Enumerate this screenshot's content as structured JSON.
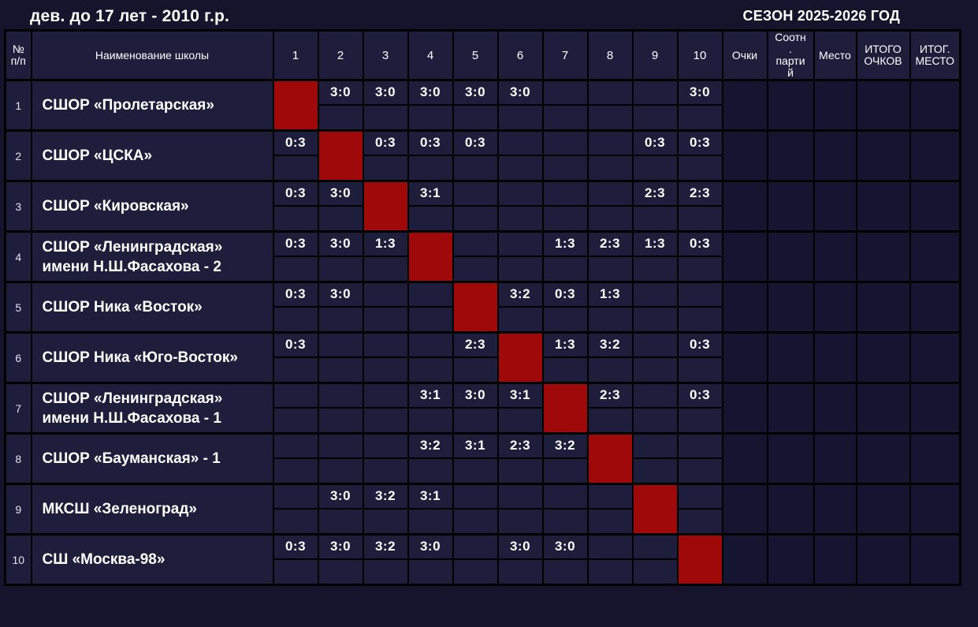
{
  "page": {
    "title": "дев. до 17 лет - 2010 г.р.",
    "season": "СЕЗОН 2025-2026 ГОД"
  },
  "colors": {
    "page_bg": "#15142c",
    "cell_bg": "#1e1d3b",
    "summary_cell_bg": "#161531",
    "diagonal_red": "#a00909",
    "border": "#000000",
    "text": "#ffffff"
  },
  "table": {
    "headers": {
      "num": "№ п/п",
      "school": "Наименование школы",
      "rounds": [
        "1",
        "2",
        "3",
        "4",
        "5",
        "6",
        "7",
        "8",
        "9",
        "10"
      ],
      "points": "Очки",
      "set_ratio": "Соотн. партий",
      "place": "Место",
      "total_points": "ИТОГО ОЧКОВ",
      "final_place": "ИТОГ. МЕСТО"
    },
    "rows": [
      {
        "num": "1",
        "school": "СШОР «Пролетарская»",
        "results": [
          "",
          "3:0",
          "3:0",
          "3:0",
          "3:0",
          "3:0",
          "",
          "",
          "",
          "3:0"
        ],
        "points": "",
        "set_ratio": "",
        "place": "",
        "total_points": "",
        "final_place": ""
      },
      {
        "num": "2",
        "school": "СШОР «ЦСКА»",
        "results": [
          "0:3",
          "",
          "0:3",
          "0:3",
          "0:3",
          "",
          "",
          "",
          "0:3",
          "0:3"
        ],
        "points": "",
        "set_ratio": "",
        "place": "",
        "total_points": "",
        "final_place": ""
      },
      {
        "num": "3",
        "school": "СШОР «Кировская»",
        "results": [
          "0:3",
          "3:0",
          "",
          "3:1",
          "",
          "",
          "",
          "",
          "2:3",
          "2:3"
        ],
        "points": "",
        "set_ratio": "",
        "place": "",
        "total_points": "",
        "final_place": ""
      },
      {
        "num": "4",
        "school": "СШОР «Ленинградская» имени Н.Ш.Фасахова - 2",
        "results": [
          "0:3",
          "3:0",
          "1:3",
          "",
          "",
          "",
          "1:3",
          "2:3",
          "1:3",
          "0:3"
        ],
        "points": "",
        "set_ratio": "",
        "place": "",
        "total_points": "",
        "final_place": ""
      },
      {
        "num": "5",
        "school": "СШОР Ника «Восток»",
        "results": [
          "0:3",
          "3:0",
          "",
          "",
          "",
          "3:2",
          "0:3",
          "1:3",
          "",
          ""
        ],
        "points": "",
        "set_ratio": "",
        "place": "",
        "total_points": "",
        "final_place": ""
      },
      {
        "num": "6",
        "school": "СШОР Ника «Юго-Восток»",
        "results": [
          "0:3",
          "",
          "",
          "",
          "2:3",
          "",
          "1:3",
          "3:2",
          "",
          "0:3"
        ],
        "points": "",
        "set_ratio": "",
        "place": "",
        "total_points": "",
        "final_place": ""
      },
      {
        "num": "7",
        "school": "СШОР «Ленинградская» имени Н.Ш.Фасахова - 1",
        "results": [
          "",
          "",
          "",
          "3:1",
          "3:0",
          "3:1",
          "",
          "2:3",
          "",
          "0:3"
        ],
        "points": "",
        "set_ratio": "",
        "place": "",
        "total_points": "",
        "final_place": ""
      },
      {
        "num": "8",
        "school": "СШОР «Бауманская» - 1",
        "results": [
          "",
          "",
          "",
          "3:2",
          "3:1",
          "2:3",
          "3:2",
          "",
          "",
          ""
        ],
        "points": "",
        "set_ratio": "",
        "place": "",
        "total_points": "",
        "final_place": ""
      },
      {
        "num": "9",
        "school": "МКСШ «Зеленоград»",
        "results": [
          "",
          "3:0",
          "3:2",
          "3:1",
          "",
          "",
          "",
          "",
          "",
          ""
        ],
        "points": "",
        "set_ratio": "",
        "place": "",
        "total_points": "",
        "final_place": ""
      },
      {
        "num": "10",
        "school": "СШ «Москва-98»",
        "results": [
          "0:3",
          "3:0",
          "3:2",
          "3:0",
          "",
          "3:0",
          "3:0",
          "",
          "",
          ""
        ],
        "points": "",
        "set_ratio": "",
        "place": "",
        "total_points": "",
        "final_place": ""
      }
    ]
  }
}
